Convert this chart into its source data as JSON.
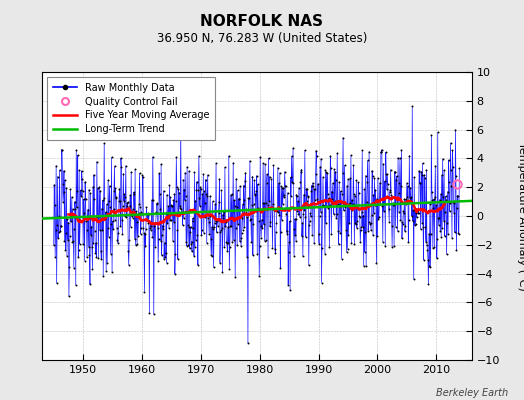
{
  "title": "NORFOLK NAS",
  "subtitle": "36.950 N, 76.283 W (United States)",
  "ylabel": "Temperature Anomaly (°C)",
  "watermark": "Berkeley Earth",
  "ylim": [
    -10,
    10
  ],
  "xlim": [
    1943,
    2016
  ],
  "yticks": [
    -10,
    -8,
    -6,
    -4,
    -2,
    0,
    2,
    4,
    6,
    8,
    10
  ],
  "xticks": [
    1950,
    1960,
    1970,
    1980,
    1990,
    2000,
    2010
  ],
  "background_color": "#e8e8e8",
  "plot_bg_color": "#ffffff",
  "raw_color": "#0000ff",
  "dot_color": "#000000",
  "mavg_color": "#ff0000",
  "trend_color": "#00bb00",
  "qc_color": "#ff69b4",
  "legend_labels": [
    "Raw Monthly Data",
    "Quality Control Fail",
    "Five Year Moving Average",
    "Long-Term Trend"
  ],
  "trend_x": [
    1943.0,
    2016.0
  ],
  "trend_y": [
    -0.18,
    1.05
  ],
  "qc_x": [
    2013.5
  ],
  "qc_y": [
    2.2
  ]
}
